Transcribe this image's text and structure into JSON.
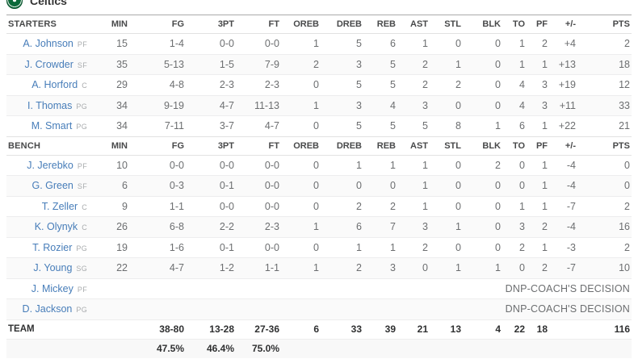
{
  "team": {
    "name": "Celtics"
  },
  "colors": {
    "team_green": "#0b6a3a",
    "link_blue": "#477db9"
  },
  "box_score": {
    "columns": [
      "MIN",
      "FG",
      "3PT",
      "FT",
      "OREB",
      "DREB",
      "REB",
      "AST",
      "STL",
      "BLK",
      "TO",
      "PF",
      "+/-",
      "PTS"
    ],
    "dnp_text": "DNP-COACH'S DECISION",
    "sections": [
      {
        "label": "STARTERS",
        "players": [
          {
            "name": "A. Johnson",
            "pos": "PF",
            "stats": [
              "15",
              "1-4",
              "0-0",
              "0-0",
              "1",
              "5",
              "6",
              "1",
              "0",
              "0",
              "1",
              "2",
              "+4",
              "2"
            ]
          },
          {
            "name": "J. Crowder",
            "pos": "SF",
            "stats": [
              "35",
              "5-13",
              "1-5",
              "7-9",
              "2",
              "3",
              "5",
              "2",
              "1",
              "0",
              "1",
              "1",
              "+13",
              "18"
            ]
          },
          {
            "name": "A. Horford",
            "pos": "C",
            "stats": [
              "29",
              "4-8",
              "2-3",
              "2-3",
              "0",
              "5",
              "5",
              "2",
              "2",
              "0",
              "4",
              "3",
              "+19",
              "12"
            ]
          },
          {
            "name": "I. Thomas",
            "pos": "PG",
            "stats": [
              "34",
              "9-19",
              "4-7",
              "11-13",
              "1",
              "3",
              "4",
              "3",
              "0",
              "0",
              "4",
              "3",
              "+11",
              "33"
            ]
          },
          {
            "name": "M. Smart",
            "pos": "PG",
            "stats": [
              "34",
              "7-11",
              "3-7",
              "4-7",
              "0",
              "5",
              "5",
              "5",
              "8",
              "1",
              "6",
              "1",
              "+22",
              "21"
            ]
          }
        ]
      },
      {
        "label": "BENCH",
        "players": [
          {
            "name": "J. Jerebko",
            "pos": "PF",
            "stats": [
              "10",
              "0-0",
              "0-0",
              "0-0",
              "0",
              "1",
              "1",
              "1",
              "0",
              "2",
              "0",
              "1",
              "-4",
              "0"
            ]
          },
          {
            "name": "G. Green",
            "pos": "SF",
            "stats": [
              "6",
              "0-3",
              "0-1",
              "0-0",
              "0",
              "0",
              "0",
              "1",
              "0",
              "0",
              "0",
              "1",
              "-4",
              "0"
            ]
          },
          {
            "name": "T. Zeller",
            "pos": "C",
            "stats": [
              "9",
              "1-1",
              "0-0",
              "0-0",
              "0",
              "2",
              "2",
              "1",
              "0",
              "0",
              "1",
              "1",
              "-7",
              "2"
            ]
          },
          {
            "name": "K. Olynyk",
            "pos": "C",
            "stats": [
              "26",
              "6-8",
              "2-2",
              "2-3",
              "1",
              "6",
              "7",
              "3",
              "1",
              "0",
              "3",
              "2",
              "-4",
              "16"
            ]
          },
          {
            "name": "T. Rozier",
            "pos": "PG",
            "stats": [
              "19",
              "1-6",
              "0-1",
              "0-0",
              "0",
              "1",
              "1",
              "2",
              "0",
              "0",
              "2",
              "1",
              "-3",
              "2"
            ]
          },
          {
            "name": "J. Young",
            "pos": "SG",
            "stats": [
              "22",
              "4-7",
              "1-2",
              "1-1",
              "1",
              "2",
              "3",
              "0",
              "1",
              "1",
              "0",
              "2",
              "-7",
              "10"
            ]
          },
          {
            "name": "J. Mickey",
            "pos": "PF",
            "dnp": true
          },
          {
            "name": "D. Jackson",
            "pos": "PG",
            "dnp": true
          }
        ]
      }
    ],
    "totals": {
      "label": "TEAM",
      "values": [
        "",
        "38-80",
        "13-28",
        "27-36",
        "6",
        "33",
        "39",
        "21",
        "13",
        "4",
        "22",
        "18",
        "",
        "116"
      ]
    },
    "percentages": [
      "",
      "47.5%",
      "46.4%",
      "75.0%",
      "",
      "",
      "",
      "",
      "",
      "",
      "",
      "",
      "",
      ""
    ]
  }
}
